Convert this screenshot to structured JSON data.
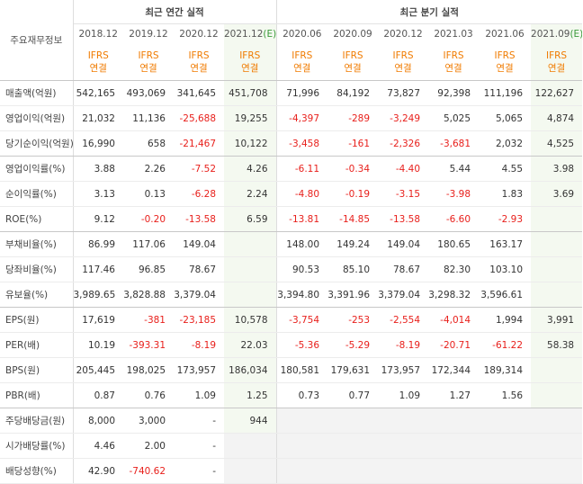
{
  "header": {
    "title": "주요재무정보",
    "groups": [
      {
        "label": "최근 연간 실적",
        "span": 4
      },
      {
        "label": "최근 분기 실적",
        "span": 6
      }
    ],
    "columns": [
      {
        "date": "2018.12",
        "ifrs": "IFRS",
        "basis": "연결"
      },
      {
        "date": "2019.12",
        "ifrs": "IFRS",
        "basis": "연결"
      },
      {
        "date": "2020.12",
        "ifrs": "IFRS",
        "basis": "연결"
      },
      {
        "date": "2021.12",
        "flag": "(E)",
        "ifrs": "IFRS",
        "basis": "연결"
      },
      {
        "date": "2020.06",
        "ifrs": "IFRS",
        "basis": "연결"
      },
      {
        "date": "2020.09",
        "ifrs": "IFRS",
        "basis": "연결"
      },
      {
        "date": "2020.12",
        "ifrs": "IFRS",
        "basis": "연결"
      },
      {
        "date": "2021.03",
        "ifrs": "IFRS",
        "basis": "연결"
      },
      {
        "date": "2021.06",
        "ifrs": "IFRS",
        "basis": "연결"
      },
      {
        "date": "2021.09",
        "flag": "(E)",
        "ifrs": "IFRS",
        "basis": "연결"
      }
    ]
  },
  "table": {
    "rows": [
      {
        "label": "매출액(억원)",
        "cells": [
          "542,165",
          "493,069",
          "341,645",
          "451,708",
          "71,996",
          "84,192",
          "73,827",
          "92,398",
          "111,196",
          "122,627"
        ]
      },
      {
        "label": "영업이익(억원)",
        "cells": [
          "21,032",
          "11,136",
          "-25,688",
          "19,255",
          "-4,397",
          "-289",
          "-3,249",
          "5,025",
          "5,065",
          "4,874"
        ]
      },
      {
        "label": "당기순이익(억원)",
        "cells": [
          "16,990",
          "658",
          "-21,467",
          "10,122",
          "-3,458",
          "-161",
          "-2,326",
          "-3,681",
          "2,032",
          "4,525"
        ]
      },
      {
        "label": "영업이익률(%)",
        "cells": [
          "3.88",
          "2.26",
          "-7.52",
          "4.26",
          "-6.11",
          "-0.34",
          "-4.40",
          "5.44",
          "4.55",
          "3.98"
        ]
      },
      {
        "label": "순이익률(%)",
        "cells": [
          "3.13",
          "0.13",
          "-6.28",
          "2.24",
          "-4.80",
          "-0.19",
          "-3.15",
          "-3.98",
          "1.83",
          "3.69"
        ]
      },
      {
        "label": "ROE(%)",
        "cells": [
          "9.12",
          "-0.20",
          "-13.58",
          "6.59",
          "-13.81",
          "-14.85",
          "-13.58",
          "-6.60",
          "-2.93",
          null
        ]
      },
      {
        "label": "부채비율(%)",
        "cells": [
          "86.99",
          "117.06",
          "149.04",
          null,
          "148.00",
          "149.24",
          "149.04",
          "180.65",
          "163.17",
          null
        ]
      },
      {
        "label": "당좌비율(%)",
        "cells": [
          "117.46",
          "96.85",
          "78.67",
          null,
          "90.53",
          "85.10",
          "78.67",
          "82.30",
          "103.10",
          null
        ]
      },
      {
        "label": "유보율(%)",
        "cells": [
          "3,989.65",
          "3,828.88",
          "3,379.04",
          null,
          "3,394.80",
          "3,391.96",
          "3,379.04",
          "3,298.32",
          "3,596.61",
          null
        ]
      },
      {
        "label": "EPS(원)",
        "cells": [
          "17,619",
          "-381",
          "-23,185",
          "10,578",
          "-3,754",
          "-253",
          "-2,554",
          "-4,014",
          "1,994",
          "3,991"
        ]
      },
      {
        "label": "PER(배)",
        "cells": [
          "10.19",
          "-393.31",
          "-8.19",
          "22.03",
          "-5.36",
          "-5.29",
          "-8.19",
          "-20.71",
          "-61.22",
          "58.38"
        ]
      },
      {
        "label": "BPS(원)",
        "cells": [
          "205,445",
          "198,025",
          "173,957",
          "186,034",
          "180,581",
          "179,631",
          "173,957",
          "172,344",
          "189,314",
          null
        ]
      },
      {
        "label": "PBR(배)",
        "cells": [
          "0.87",
          "0.76",
          "1.09",
          "1.25",
          "0.73",
          "0.77",
          "1.09",
          "1.27",
          "1.56",
          null
        ]
      },
      {
        "label": "주당배당금(원)",
        "cells": [
          "8,000",
          "3,000",
          "-",
          "944"
        ]
      },
      {
        "label": "시가배당률(%)",
        "cells": [
          "4.46",
          "2.00",
          "-"
        ]
      },
      {
        "label": "배당성향(%)",
        "cells": [
          "42.90",
          "-740.62",
          "-"
        ]
      }
    ]
  }
}
